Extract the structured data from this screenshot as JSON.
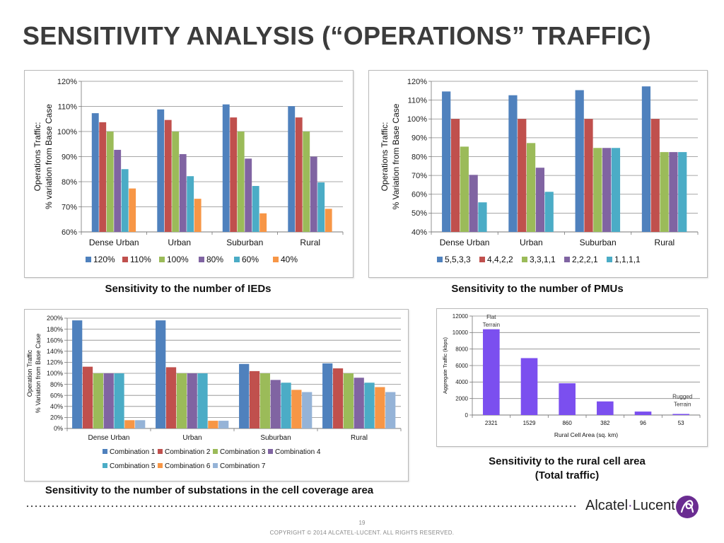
{
  "slide": {
    "title": "SENSITIVITY ANALYSIS (“OPERATIONS” TRAFFIC)",
    "page_number": "19",
    "copyright": "COPYRIGHT © 2014 ALCATEL-LUCENT.  ALL RIGHTS RESERVED.",
    "logo_text_left": "Alcatel",
    "logo_separator": "·",
    "logo_text_right": "Lucent",
    "logo_color": "#6a2c91"
  },
  "captions": {
    "ieds": "Sensitivity to the number of IEDs",
    "pmus": "Sensitivity to the number of PMUs",
    "substations": "Sensitivity to the number of substations in the cell coverage area",
    "rural_line1": "Sensitivity to the rural cell area",
    "rural_line2": "(Total traffic)"
  },
  "chart_data": [
    {
      "id": "ieds",
      "type": "bar",
      "ylabel_lines": [
        "Operations Traffic:",
        "% variation from Base Case"
      ],
      "ylim": [
        60,
        120
      ],
      "yticks": [
        60,
        70,
        80,
        90,
        100,
        110,
        120
      ],
      "ytick_suffix": "%",
      "grid": true,
      "legend_position": "bottom",
      "categories": [
        "Dense Urban",
        "Urban",
        "Suburban",
        "Rural"
      ],
      "series": [
        {
          "name": "120%",
          "color": "#4f81bd",
          "values": [
            107.3,
            108.8,
            110.8,
            110.1
          ]
        },
        {
          "name": "110%",
          "color": "#c0504d",
          "values": [
            103.7,
            104.6,
            105.6,
            105.6
          ]
        },
        {
          "name": "100%",
          "color": "#9bbb59",
          "values": [
            100,
            100,
            100,
            100
          ]
        },
        {
          "name": "80%",
          "color": "#8064a2",
          "values": [
            92.7,
            91.0,
            89.2,
            90.0
          ]
        },
        {
          "name": "60%",
          "color": "#4bacc6",
          "values": [
            85.0,
            82.2,
            78.3,
            79.7
          ]
        },
        {
          "name": "40%",
          "color": "#f79646",
          "values": [
            77.3,
            73.2,
            67.4,
            69.2
          ]
        }
      ]
    },
    {
      "id": "pmus",
      "type": "bar",
      "ylabel_lines": [
        "Operations Traffic:",
        "% Variation from Base Case"
      ],
      "ylim": [
        40,
        120
      ],
      "yticks": [
        40,
        50,
        60,
        70,
        80,
        90,
        100,
        110,
        120
      ],
      "ytick_suffix": "%",
      "grid": true,
      "legend_position": "bottom",
      "categories": [
        "Dense Urban",
        "Urban",
        "Suburban",
        "Rural"
      ],
      "series": [
        {
          "name": "5,5,3,3",
          "color": "#4f81bd",
          "values": [
            114.6,
            112.6,
            115.3,
            117.3
          ]
        },
        {
          "name": "4,4,2,2",
          "color": "#c0504d",
          "values": [
            100,
            100,
            100,
            100
          ]
        },
        {
          "name": "3,3,1,1",
          "color": "#9bbb59",
          "values": [
            85.3,
            87.2,
            84.6,
            82.4
          ]
        },
        {
          "name": "2,2,2,1",
          "color": "#8064a2",
          "values": [
            70.3,
            74.1,
            84.6,
            82.4
          ]
        },
        {
          "name": "1,1,1,1",
          "color": "#4bacc6",
          "values": [
            55.7,
            61.3,
            84.6,
            82.4
          ]
        }
      ]
    },
    {
      "id": "substations",
      "type": "bar",
      "ylabel_lines": [
        "Operation Traffic",
        "% Variation from Base Case"
      ],
      "ylim": [
        0,
        200
      ],
      "yticks": [
        0,
        20,
        40,
        60,
        80,
        100,
        120,
        140,
        160,
        180,
        200
      ],
      "ytick_suffix": "%",
      "grid": true,
      "legend_position": "bottom",
      "categories": [
        "Dense Urban",
        "Urban",
        "Suburban",
        "Rural"
      ],
      "series": [
        {
          "name": "Combination 1",
          "color": "#4f81bd",
          "values": [
            196,
            196,
            117,
            118
          ]
        },
        {
          "name": "Combination 2",
          "color": "#c0504d",
          "values": [
            112,
            111,
            104,
            109
          ]
        },
        {
          "name": "Combination 3",
          "color": "#9bbb59",
          "values": [
            100,
            100,
            100,
            100
          ]
        },
        {
          "name": "Combination 4",
          "color": "#8064a2",
          "values": [
            100,
            100,
            88,
            92
          ]
        },
        {
          "name": "Combination 5",
          "color": "#4bacc6",
          "values": [
            100,
            100,
            83,
            83
          ]
        },
        {
          "name": "Combination 6",
          "color": "#f79646",
          "values": [
            15,
            14,
            70,
            75
          ]
        },
        {
          "name": "Combination 7",
          "color": "#95b3d7",
          "values": [
            15,
            14,
            66,
            66
          ]
        }
      ]
    },
    {
      "id": "rural_area",
      "type": "bar",
      "ylabel": "Aggregate Traffic (kbps)",
      "xlabel": "Rural Cell Area (sq. km)",
      "ylim": [
        0,
        12000
      ],
      "yticks": [
        0,
        2000,
        4000,
        6000,
        8000,
        10000,
        12000
      ],
      "ytick_suffix": "",
      "grid": true,
      "categories": [
        "2321",
        "1529",
        "860",
        "382",
        "96",
        "53"
      ],
      "series": [
        {
          "color": "#7b4fef",
          "values": [
            10400,
            6900,
            3850,
            1650,
            420,
            130
          ]
        }
      ],
      "annotations": [
        {
          "category_index": 0,
          "lines": [
            "Flat",
            "Terrain"
          ]
        },
        {
          "category_index": 5,
          "lines": [
            "Rugged",
            "Terrain"
          ]
        }
      ]
    }
  ]
}
